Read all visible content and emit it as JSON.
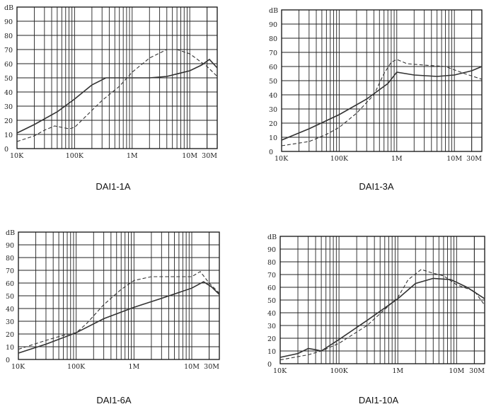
{
  "chart_data": [
    {
      "type": "line",
      "title": "DAI1-1A",
      "ylabel": "dB",
      "ylim": [
        0,
        100
      ],
      "yticks": [
        "0",
        "10",
        "20",
        "30",
        "40",
        "50",
        "60",
        "70",
        "80",
        "90"
      ],
      "xscale": "log",
      "xlim": [
        10000,
        30000000
      ],
      "xticks": [
        {
          "label": "10K",
          "value": 10000
        },
        {
          "label": "100K",
          "value": 100000
        },
        {
          "label": "1M",
          "value": 1000000
        },
        {
          "label": "10M",
          "value": 10000000
        },
        {
          "label": "30M",
          "value": 30000000
        }
      ],
      "series": [
        {
          "style": "solid",
          "x": [
            10000,
            20000,
            50000,
            100000,
            200000,
            350000,
            500000,
            1000000,
            2000000,
            4000000,
            10000000,
            16000000,
            22000000,
            30000000
          ],
          "y": [
            11,
            17,
            26,
            35,
            45,
            50,
            50,
            50,
            50,
            51,
            55,
            59,
            63,
            57
          ]
        },
        {
          "style": "dashed",
          "x": [
            10000,
            20000,
            30000,
            45000,
            60000,
            80000,
            100000,
            150000,
            300000,
            600000,
            1000000,
            2000000,
            4000000,
            6000000,
            10000000,
            20000000,
            30000000
          ],
          "y": [
            5,
            9,
            13,
            16,
            15,
            14,
            15,
            22,
            34,
            44,
            54,
            64,
            70,
            70,
            67,
            58,
            51
          ]
        }
      ]
    },
    {
      "type": "line",
      "title": "DAI1-3A",
      "ylabel": "dB",
      "ylim": [
        0,
        100
      ],
      "yticks": [
        "0",
        "10",
        "20",
        "30",
        "40",
        "50",
        "60",
        "70",
        "80",
        "90"
      ],
      "xscale": "log",
      "xlim": [
        10000,
        30000000
      ],
      "xticks": [
        {
          "label": "10K",
          "value": 10000
        },
        {
          "label": "100K",
          "value": 100000
        },
        {
          "label": "1M",
          "value": 1000000
        },
        {
          "label": "10M",
          "value": 10000000
        },
        {
          "label": "30M",
          "value": 30000000
        }
      ],
      "series": [
        {
          "style": "solid",
          "x": [
            10000,
            30000,
            100000,
            300000,
            700000,
            1000000,
            2000000,
            5000000,
            10000000,
            20000000,
            30000000
          ],
          "y": [
            8,
            16,
            26,
            37,
            48,
            56,
            54,
            53,
            54,
            57,
            60
          ]
        },
        {
          "style": "dashed",
          "x": [
            10000,
            30000,
            60000,
            100000,
            200000,
            400000,
            600000,
            800000,
            1000000,
            1500000,
            3000000,
            7000000,
            15000000,
            30000000
          ],
          "y": [
            4,
            7,
            12,
            17,
            27,
            40,
            55,
            63,
            65,
            62,
            61,
            60,
            55,
            51
          ]
        }
      ]
    },
    {
      "type": "line",
      "title": "DAI1-6A",
      "ylabel": "dB",
      "ylim": [
        0,
        100
      ],
      "yticks": [
        "0",
        "10",
        "20",
        "30",
        "40",
        "50",
        "60",
        "70",
        "80",
        "90"
      ],
      "xscale": "log",
      "xlim": [
        10000,
        30000000
      ],
      "xticks": [
        {
          "label": "10K",
          "value": 10000
        },
        {
          "label": "100K",
          "value": 100000
        },
        {
          "label": "1M",
          "value": 1000000
        },
        {
          "label": "10M",
          "value": 10000000
        },
        {
          "label": "30M",
          "value": 30000000
        }
      ],
      "series": [
        {
          "style": "solid",
          "x": [
            10000,
            30000,
            100000,
            300000,
            1000000,
            3000000,
            10000000,
            16000000,
            22000000,
            30000000
          ],
          "y": [
            5,
            12,
            21,
            32,
            41,
            48,
            56,
            61,
            57,
            51
          ]
        },
        {
          "style": "dashed",
          "x": [
            10000,
            30000,
            60000,
            100000,
            150000,
            300000,
            600000,
            1000000,
            2000000,
            5000000,
            10000000,
            14000000,
            20000000,
            30000000
          ],
          "y": [
            8,
            15,
            19,
            21,
            28,
            43,
            55,
            62,
            65,
            65,
            65,
            69,
            60,
            52
          ]
        }
      ]
    },
    {
      "type": "line",
      "title": "DAI1-10A",
      "ylabel": "dB",
      "ylim": [
        0,
        100
      ],
      "yticks": [
        "0",
        "10",
        "20",
        "30",
        "40",
        "50",
        "60",
        "70",
        "80",
        "90"
      ],
      "xscale": "log",
      "xlim": [
        10000,
        30000000
      ],
      "xticks": [
        {
          "label": "10K",
          "value": 10000
        },
        {
          "label": "100K",
          "value": 100000
        },
        {
          "label": "1M",
          "value": 1000000
        },
        {
          "label": "10M",
          "value": 10000000
        },
        {
          "label": "30M",
          "value": 30000000
        }
      ],
      "series": [
        {
          "style": "solid",
          "x": [
            10000,
            20000,
            30000,
            40000,
            50000,
            100000,
            300000,
            1000000,
            2000000,
            4000000,
            8000000,
            15000000,
            30000000
          ],
          "y": [
            5,
            8,
            12,
            11,
            10,
            19,
            34,
            51,
            63,
            67,
            66,
            60,
            51
          ]
        },
        {
          "style": "dashed",
          "x": [
            10000,
            30000,
            50000,
            100000,
            300000,
            1000000,
            1500000,
            2500000,
            4000000,
            6000000,
            10000000,
            20000000,
            30000000
          ],
          "y": [
            3,
            7,
            10,
            16,
            30,
            52,
            66,
            74,
            71,
            69,
            62,
            57,
            46
          ]
        }
      ]
    }
  ]
}
